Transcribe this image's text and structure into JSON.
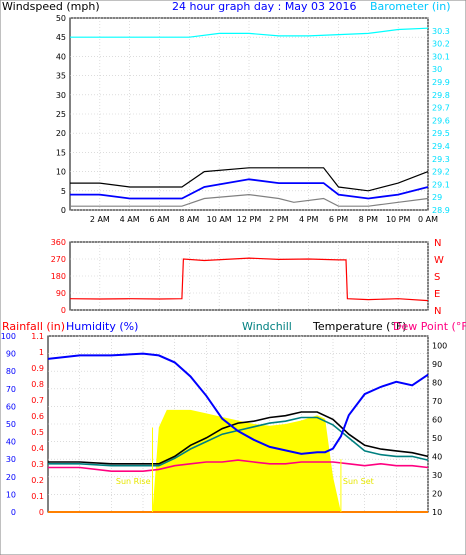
{
  "chart_data": [
    {
      "type": "line",
      "panel": "wind",
      "title": "24 hour graph day : May 03 2016",
      "ylabel_left": "Windspeed (mph)",
      "ylabel_right": "Barometer (in)",
      "ylim_left": [
        0,
        50
      ],
      "ylim_right": [
        28.9,
        30.4
      ],
      "yticks_left": [
        "0",
        "5",
        "10",
        "15",
        "20",
        "25",
        "30",
        "35",
        "40",
        "45",
        "50"
      ],
      "yticks_right": [
        "28.9",
        "29",
        "29.1",
        "29.2",
        "29.3",
        "29.4",
        "29.5",
        "29.6",
        "29.7",
        "29.8",
        "29.9",
        "30",
        "30.1",
        "30.2",
        "30.3"
      ],
      "xticks": [
        "2 AM",
        "4 AM",
        "6 AM",
        "8 AM",
        "10 AM",
        "12 PM",
        "2 PM",
        "4 PM",
        "6 PM",
        "8 PM",
        "10 PM",
        "0 AM"
      ],
      "grid": true,
      "series": [
        {
          "name": "Windspeed (mph)",
          "color": "#808080",
          "x": [
            0,
            2,
            4,
            6,
            7.5,
            9,
            12,
            14,
            15,
            17,
            18,
            20,
            22,
            24
          ],
          "y": [
            1,
            1,
            1,
            1,
            1,
            3,
            4,
            3,
            2,
            3,
            1,
            1,
            2,
            3
          ]
        },
        {
          "name": "Windspeed (mph)",
          "color": "#0000ff",
          "x": [
            0,
            2,
            4,
            6,
            7.5,
            9,
            12,
            14,
            15,
            17,
            18,
            20,
            22,
            24
          ],
          "y": [
            4,
            4,
            3,
            3,
            3,
            6,
            8,
            7,
            7,
            7,
            4,
            3,
            4,
            6
          ]
        },
        {
          "name": "Windspeed (mph)",
          "color": "#000000",
          "x": [
            0,
            2,
            4,
            6,
            7.5,
            9,
            12,
            14,
            15,
            17,
            18,
            20,
            22,
            24
          ],
          "y": [
            7,
            7,
            6,
            6,
            6,
            10,
            11,
            11,
            11,
            11,
            6,
            5,
            7,
            10
          ]
        },
        {
          "name": "Barometer (in)",
          "color": "#00ffff",
          "x": [
            0,
            2,
            4,
            6,
            8,
            10,
            12,
            14,
            16,
            18,
            20,
            22,
            24
          ],
          "y": [
            30.25,
            30.25,
            30.25,
            30.25,
            30.25,
            30.28,
            30.28,
            30.26,
            30.26,
            30.27,
            30.28,
            30.31,
            30.32
          ]
        }
      ]
    },
    {
      "type": "line",
      "panel": "direction",
      "ylim": [
        0,
        360
      ],
      "yticks_left": [
        "0",
        "90",
        "180",
        "270",
        "360"
      ],
      "yticks_right": [
        "N",
        "E",
        "S",
        "W",
        "N"
      ],
      "grid": true,
      "series": [
        {
          "color": "#ff0000",
          "x": [
            0,
            2,
            4,
            6,
            7.5,
            7.6,
            9,
            12,
            14,
            16,
            18,
            18.5,
            18.6,
            20,
            22,
            24
          ],
          "y": [
            60,
            58,
            60,
            58,
            60,
            270,
            262,
            275,
            268,
            270,
            265,
            265,
            60,
            55,
            60,
            50
          ]
        }
      ]
    },
    {
      "type": "line",
      "panel": "temperature",
      "ylabel_left_1": "Rainfall (in)",
      "ylabel_left_2": "Humidity (%)",
      "ylabel_windchill": "Windchill",
      "ylabel_temperature": "Temperature (°F)",
      "ylabel_dewpoint": "Dew Point (°F)",
      "ylim_humidity": [
        0,
        100
      ],
      "ylim_rainfall": [
        0,
        1.1
      ],
      "ylim_temperature": [
        10,
        105
      ],
      "yticks_humidity": [
        "0",
        "10",
        "20",
        "30",
        "40",
        "50",
        "60",
        "70",
        "80",
        "90",
        "100"
      ],
      "yticks_rainfall": [
        "0",
        "0.1",
        "0.2",
        "0.3",
        "0.4",
        "0.5",
        "0.6",
        "0.7",
        "0.8",
        "0.9",
        "1",
        "1.1"
      ],
      "yticks_temperature": [
        "10",
        "20",
        "30",
        "40",
        "50",
        "60",
        "70",
        "80",
        "90",
        "100"
      ],
      "annotations": [
        "Sun Rise",
        "Sun Set"
      ],
      "sunrise_hour": 6.6,
      "sunset_hour": 18.5,
      "grid": true,
      "series": [
        {
          "name": "Humidity (%)",
          "color": "#0000ff",
          "x": [
            0,
            2,
            4,
            6,
            7,
            8,
            9,
            10,
            11,
            12,
            13,
            14,
            16,
            17,
            17.5,
            18,
            18.5,
            19,
            20,
            21,
            22,
            23,
            24
          ],
          "y": [
            87,
            89,
            89,
            90,
            89,
            85,
            77,
            66,
            53,
            46,
            41,
            37,
            33,
            34,
            34,
            36,
            43,
            55,
            67,
            71,
            74,
            72,
            78
          ]
        },
        {
          "name": "Temperature (°F)",
          "color": "#000000",
          "x": [
            0,
            2,
            4,
            6,
            7,
            8,
            9,
            10,
            11,
            12,
            13,
            14,
            15,
            16,
            17,
            18,
            19,
            20,
            21,
            22,
            23,
            24
          ],
          "y": [
            37,
            37,
            36,
            36,
            36,
            40,
            46,
            50,
            55,
            58,
            59,
            61,
            62,
            64,
            64,
            60,
            52,
            46,
            44,
            43,
            42,
            40
          ]
        },
        {
          "name": "Windchill",
          "color": "#008080",
          "x": [
            0,
            2,
            4,
            6,
            7,
            8,
            9,
            10,
            11,
            12,
            13,
            14,
            15,
            16,
            17,
            18,
            19,
            20,
            21,
            22,
            23,
            24
          ],
          "y": [
            36,
            36,
            35,
            35,
            35,
            39,
            44,
            48,
            52,
            54,
            56,
            58,
            59,
            61,
            61,
            57,
            50,
            43,
            41,
            40,
            40,
            38
          ]
        },
        {
          "name": "Dew Point (°F)",
          "color": "#ff0080",
          "x": [
            0,
            2,
            4,
            6,
            7,
            8,
            9,
            10,
            11,
            12,
            13,
            14,
            15,
            16,
            17,
            18,
            19,
            20,
            21,
            22,
            23,
            24
          ],
          "y": [
            34,
            34,
            32,
            32,
            33,
            35,
            36,
            37,
            37,
            38,
            37,
            36,
            36,
            37,
            37,
            37,
            36,
            35,
            36,
            35,
            35,
            34
          ]
        },
        {
          "name": "Solar",
          "color": "#ffff00",
          "x": [
            6.6,
            7,
            7.5,
            8,
            9,
            10,
            11,
            12,
            13,
            14,
            15,
            16,
            17,
            17.5,
            18,
            18.5
          ],
          "y": [
            0,
            48,
            58,
            58,
            58,
            56,
            54,
            52,
            50,
            49,
            50,
            52,
            55,
            53,
            20,
            0
          ]
        },
        {
          "name": "Rainfall (in)",
          "color": "#ff8000",
          "x": [
            0,
            24
          ],
          "y": [
            0,
            0
          ]
        }
      ]
    }
  ]
}
